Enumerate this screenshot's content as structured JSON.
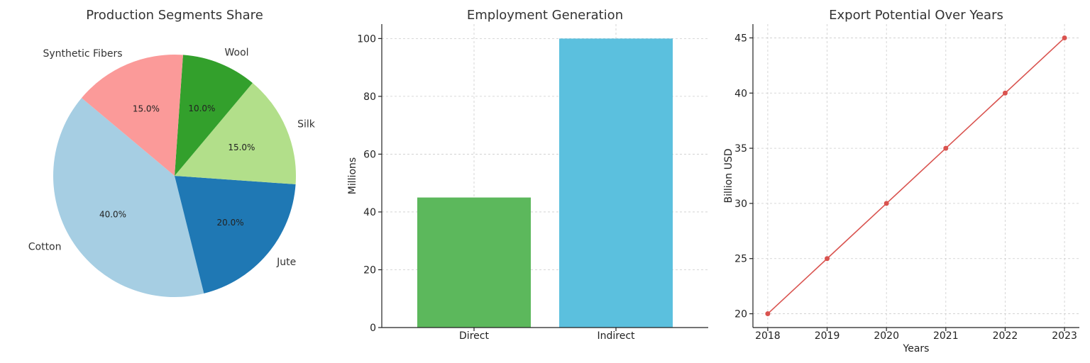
{
  "chart_data": [
    {
      "type": "pie",
      "title": "Production Segments Share",
      "labels": [
        "Cotton",
        "Jute",
        "Silk",
        "Wool",
        "Synthetic Fibers"
      ],
      "values": [
        40,
        20,
        15,
        10,
        15
      ],
      "percent_labels": [
        "40.0%",
        "20.0%",
        "15.0%",
        "10.0%",
        "15.0%"
      ],
      "colors": [
        "#a6cee3",
        "#1f78b4",
        "#b2df8a",
        "#33a02c",
        "#fb9a99"
      ]
    },
    {
      "type": "bar",
      "title": "Employment Generation",
      "categories": [
        "Direct",
        "Indirect"
      ],
      "values": [
        45,
        100
      ],
      "colors": [
        "#5cb85c",
        "#5bc0de"
      ],
      "xlabel": "",
      "ylabel": "Millions",
      "ylim": [
        0,
        105
      ],
      "yticks": [
        0,
        20,
        40,
        60,
        80,
        100
      ],
      "grid": true
    },
    {
      "type": "line",
      "title": "Export Potential Over Years",
      "x": [
        2018,
        2019,
        2020,
        2021,
        2022,
        2023
      ],
      "y": [
        20,
        25,
        30,
        35,
        40,
        45
      ],
      "color": "#d9534f",
      "xlabel": "Years",
      "ylabel": "Billion USD",
      "ylim": [
        18.75,
        46.25
      ],
      "yticks": [
        20,
        25,
        30,
        35,
        40,
        45
      ],
      "grid": true
    }
  ]
}
